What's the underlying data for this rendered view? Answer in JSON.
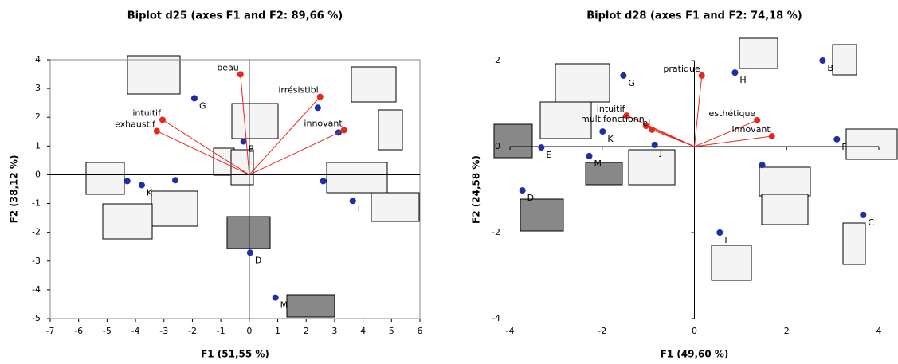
{
  "chart_data": [
    {
      "type": "scatter",
      "title": "Biplot d25 (axes F1 and F2: 89,66 %)",
      "x_label": "F1 (51,55 %)",
      "y_label": "F2 (38,12 %)",
      "xlim": [
        -7,
        6
      ],
      "ylim": [
        -5,
        4
      ],
      "xticks": [
        -7,
        -6,
        -5,
        -4,
        -3,
        -2,
        -1,
        0,
        1,
        2,
        3,
        4,
        5,
        6
      ],
      "yticks": [
        -5,
        -4,
        -3,
        -2,
        -1,
        0,
        1,
        2,
        3,
        4
      ],
      "frame": true,
      "series": [
        {
          "color": "#1a2fa8",
          "vectors": false,
          "x": [
            -1.93,
            -0.2,
            2.41,
            3.14,
            -4.29,
            -3.78,
            -2.6,
            2.6,
            3.64,
            0.03,
            0.92
          ],
          "values": [
            2.66,
            1.16,
            2.33,
            1.47,
            -0.22,
            -0.36,
            -0.19,
            -0.22,
            -0.91,
            -2.71,
            -4.27
          ],
          "labels": [
            "G",
            "B",
            null,
            null,
            null,
            "K",
            null,
            null,
            "I",
            "D",
            "M"
          ]
        },
        {
          "color": "#e8281e",
          "vectors": true,
          "x": [
            -0.31,
            -3.05,
            -3.25,
            2.49,
            3.33
          ],
          "values": [
            3.49,
            1.91,
            1.52,
            2.71,
            1.55
          ],
          "labels": [
            "beau",
            "intuitif",
            "exhaustif",
            "irrésistibl",
            "innovant"
          ]
        }
      ]
    },
    {
      "type": "scatter",
      "title": "Biplot d28 (axes F1 and F2: 74,18 %)",
      "x_label": "F1 (49,60 %)",
      "y_label": "F2 (24,58 %)",
      "xlim": [
        -4,
        4
      ],
      "ylim": [
        -4,
        2
      ],
      "xticks": [
        -4,
        -2,
        0,
        2,
        4
      ],
      "yticks": [
        -4,
        -2,
        0,
        2
      ],
      "frame": false,
      "series": [
        {
          "color": "#1a2fa8",
          "vectors": false,
          "x": [
            -1.54,
            0.88,
            2.78,
            3.09,
            -1.99,
            -0.86,
            -3.32,
            -2.28,
            1.47,
            -3.73,
            3.66,
            0.55
          ],
          "values": [
            1.65,
            1.72,
            2.0,
            0.17,
            0.35,
            0.04,
            -0.02,
            -0.22,
            -0.43,
            -1.02,
            -1.59,
            -2.0
          ],
          "labels": [
            "G",
            "H",
            "B",
            "F",
            "K",
            "J",
            "E",
            "M",
            null,
            "D",
            "C",
            "I"
          ]
        },
        {
          "color": "#e8281e",
          "vectors": true,
          "x": [
            0.16,
            -1.47,
            -1.05,
            -0.92,
            1.36,
            1.68
          ],
          "values": [
            1.65,
            0.72,
            0.48,
            0.39,
            0.61,
            0.24
          ],
          "labels": [
            "pratique",
            "intuitif",
            "multifonctionn",
            "el",
            "esthétique",
            "innovant"
          ]
        }
      ]
    }
  ]
}
